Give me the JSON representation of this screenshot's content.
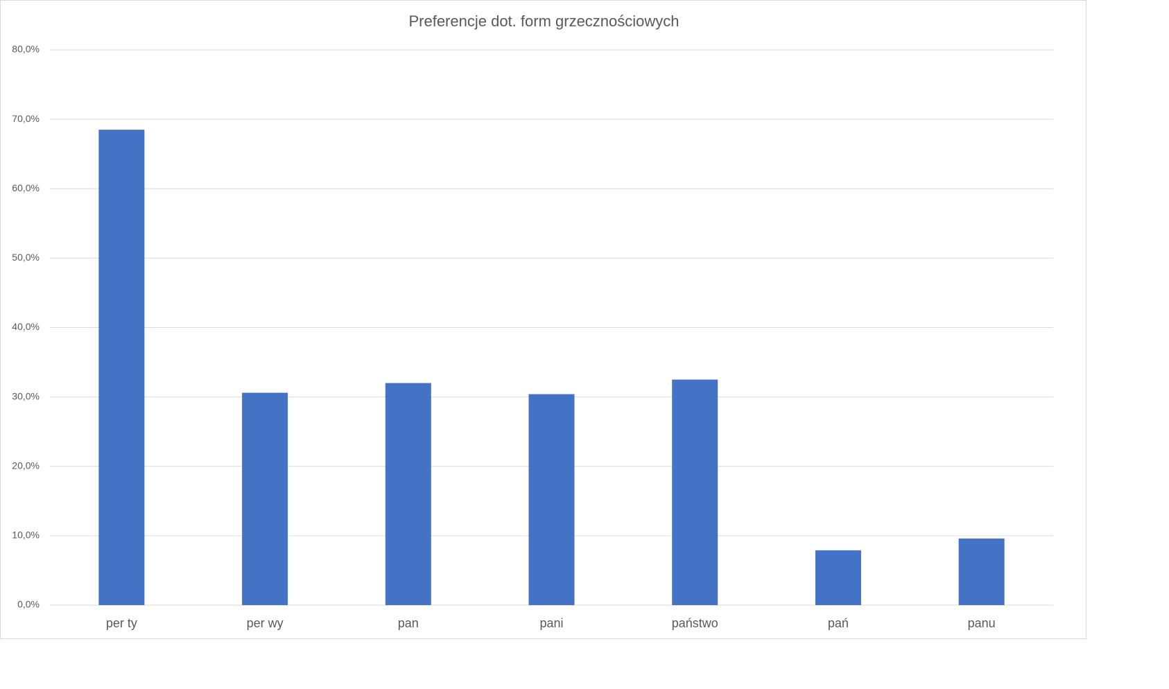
{
  "chart_data": {
    "type": "bar",
    "title": "Preferencje dot. form grzecznościowych",
    "categories": [
      "per ty",
      "per wy",
      "pan",
      "pani",
      "państwo",
      "pań",
      "panu"
    ],
    "values": [
      68.5,
      30.6,
      32.0,
      30.4,
      32.5,
      7.9,
      9.6
    ],
    "ylim": [
      0,
      80
    ],
    "yticks": [
      0,
      10,
      20,
      30,
      40,
      50,
      60,
      70,
      80
    ],
    "ytick_labels": [
      "0,0%",
      "10,0%",
      "20,0%",
      "30,0%",
      "40,0%",
      "50,0%",
      "60,0%",
      "70,0%",
      "80,0%"
    ],
    "xlabel": "",
    "ylabel": "",
    "grid": true,
    "legend": "none",
    "bar_color": "#4472C4"
  }
}
